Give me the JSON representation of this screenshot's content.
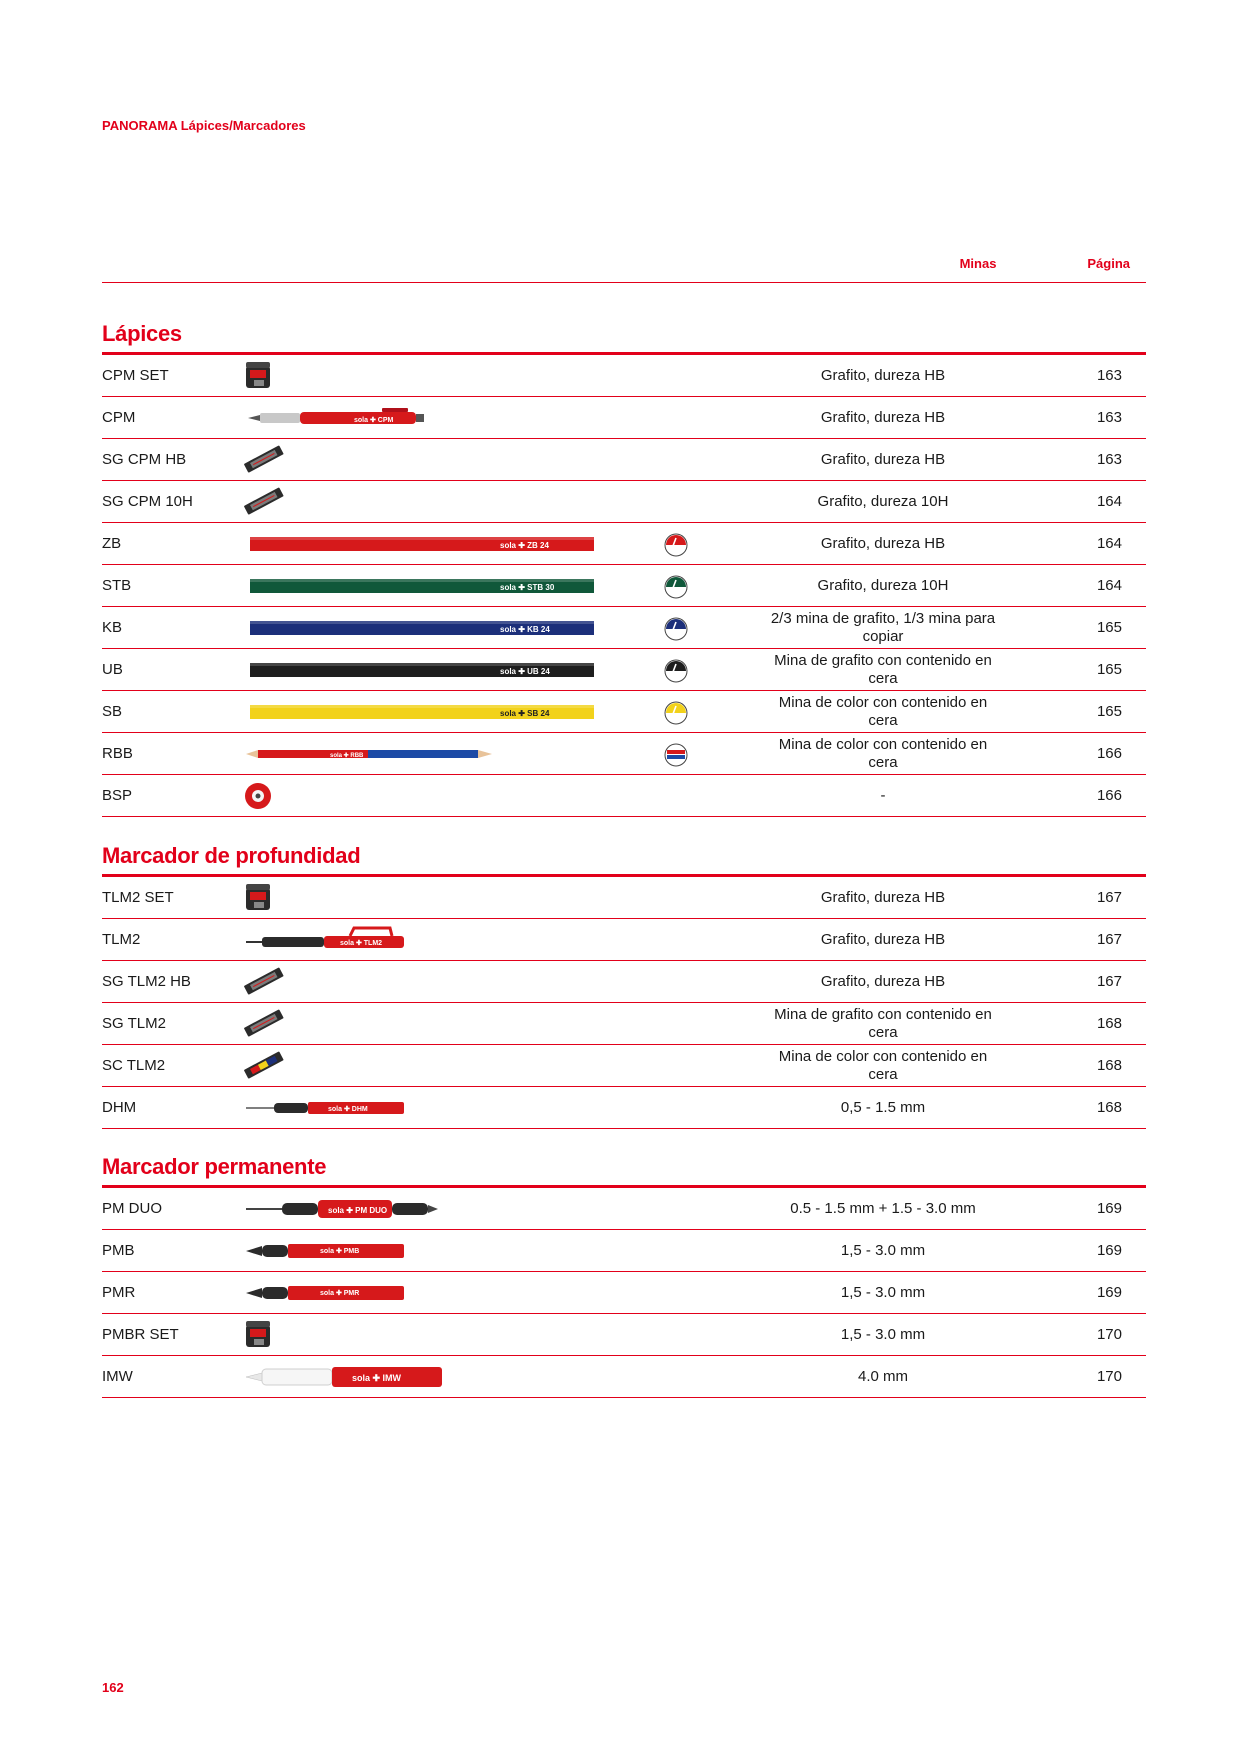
{
  "breadcrumb": "PANORAMA Lápices/Marcadores",
  "columns": {
    "minas": "Minas",
    "pagina": "Página"
  },
  "sections": [
    {
      "title": "Lápices",
      "rows": [
        {
          "name": "CPM SET",
          "minas": "Grafito, dureza HB",
          "page": "163",
          "image": "set-box",
          "symbol": ""
        },
        {
          "name": "CPM",
          "minas": "Grafito, dureza HB",
          "page": "163",
          "image": "mech-pencil",
          "label": "sola ✚ CPM",
          "symbol": ""
        },
        {
          "name": "SG CPM HB",
          "minas": "Grafito, dureza HB",
          "page": "163",
          "image": "lead-pack",
          "symbol": ""
        },
        {
          "name": "SG CPM 10H",
          "minas": "Grafito, dureza 10H",
          "page": "164",
          "image": "lead-pack",
          "symbol": ""
        },
        {
          "name": "ZB",
          "minas": "Grafito, dureza HB",
          "page": "164",
          "image": "pencil",
          "color": "#d6191b",
          "label": "sola ✚  ZB 24",
          "symbol": "#d6191b"
        },
        {
          "name": "STB",
          "minas": "Grafito, dureza 10H",
          "page": "164",
          "image": "pencil",
          "color": "#10583a",
          "label": "sola ✚  STB 30",
          "symbol": "#10583a"
        },
        {
          "name": "KB",
          "minas": "2/3 mina de grafito, 1/3 mina para copiar",
          "page": "165",
          "image": "pencil",
          "color": "#1c2f7a",
          "label": "sola ✚  KB 24",
          "symbol": "#1c2f7a"
        },
        {
          "name": "UB",
          "minas": "Mina de grafito con contenido en cera",
          "page": "165",
          "image": "pencil",
          "color": "#1e1e1e",
          "label": "sola ✚  UB 24",
          "symbol": "#1e1e1e"
        },
        {
          "name": "SB",
          "minas": "Mina de color con contenido en cera",
          "page": "165",
          "image": "pencil",
          "color": "#f2d21b",
          "label": "sola ✚  SB 24",
          "symbol": "#f2d21b"
        },
        {
          "name": "RBB",
          "minas": "Mina de color con contenido en cera",
          "page": "166",
          "image": "redblue",
          "label": "sola ✚ RBB",
          "symbol": "redblue"
        },
        {
          "name": "BSP",
          "minas": "-",
          "page": "166",
          "image": "sharpener",
          "symbol": ""
        }
      ]
    },
    {
      "title": "Marcador de profundidad",
      "rows": [
        {
          "name": "TLM2 SET",
          "minas": "Grafito, dureza HB",
          "page": "167",
          "image": "set-box",
          "symbol": ""
        },
        {
          "name": "TLM2",
          "minas": "Grafito, dureza HB",
          "page": "167",
          "image": "tlm",
          "label": "sola ✚ TLM2",
          "symbol": ""
        },
        {
          "name": "SG TLM2 HB",
          "minas": "Grafito, dureza HB",
          "page": "167",
          "image": "lead-pack",
          "symbol": ""
        },
        {
          "name": "SG TLM2",
          "minas": "Mina de grafito con contenido en cera",
          "page": "168",
          "image": "lead-pack",
          "symbol": ""
        },
        {
          "name": "SC TLM2",
          "minas": "Mina de color con contenido en cera",
          "page": "168",
          "image": "lead-pack-color",
          "symbol": ""
        },
        {
          "name": "DHM",
          "minas": "0,5 - 1.5 mm",
          "page": "168",
          "image": "dhm",
          "label": "sola ✚ DHM",
          "symbol": ""
        }
      ]
    },
    {
      "title": "Marcador permanente",
      "rows": [
        {
          "name": "PM DUO",
          "minas": "0.5 - 1.5 mm + 1.5 - 3.0 mm",
          "page": "169",
          "image": "pmduo",
          "label": "sola ✚ PM DUO",
          "symbol": ""
        },
        {
          "name": "PMB",
          "minas": "1,5 - 3.0 mm",
          "page": "169",
          "image": "marker",
          "label": "sola ✚ PMB",
          "symbol": ""
        },
        {
          "name": "PMR",
          "minas": "1,5 - 3.0 mm",
          "page": "169",
          "image": "marker",
          "label": "sola ✚ PMR",
          "symbol": ""
        },
        {
          "name": "PMBR SET",
          "minas": "1,5 - 3.0 mm",
          "page": "170",
          "image": "set-box",
          "symbol": ""
        },
        {
          "name": "IMW",
          "minas": "4.0 mm",
          "page": "170",
          "image": "imw",
          "label": "sola ✚ IMW",
          "symbol": ""
        }
      ]
    }
  ],
  "page_number": "162"
}
